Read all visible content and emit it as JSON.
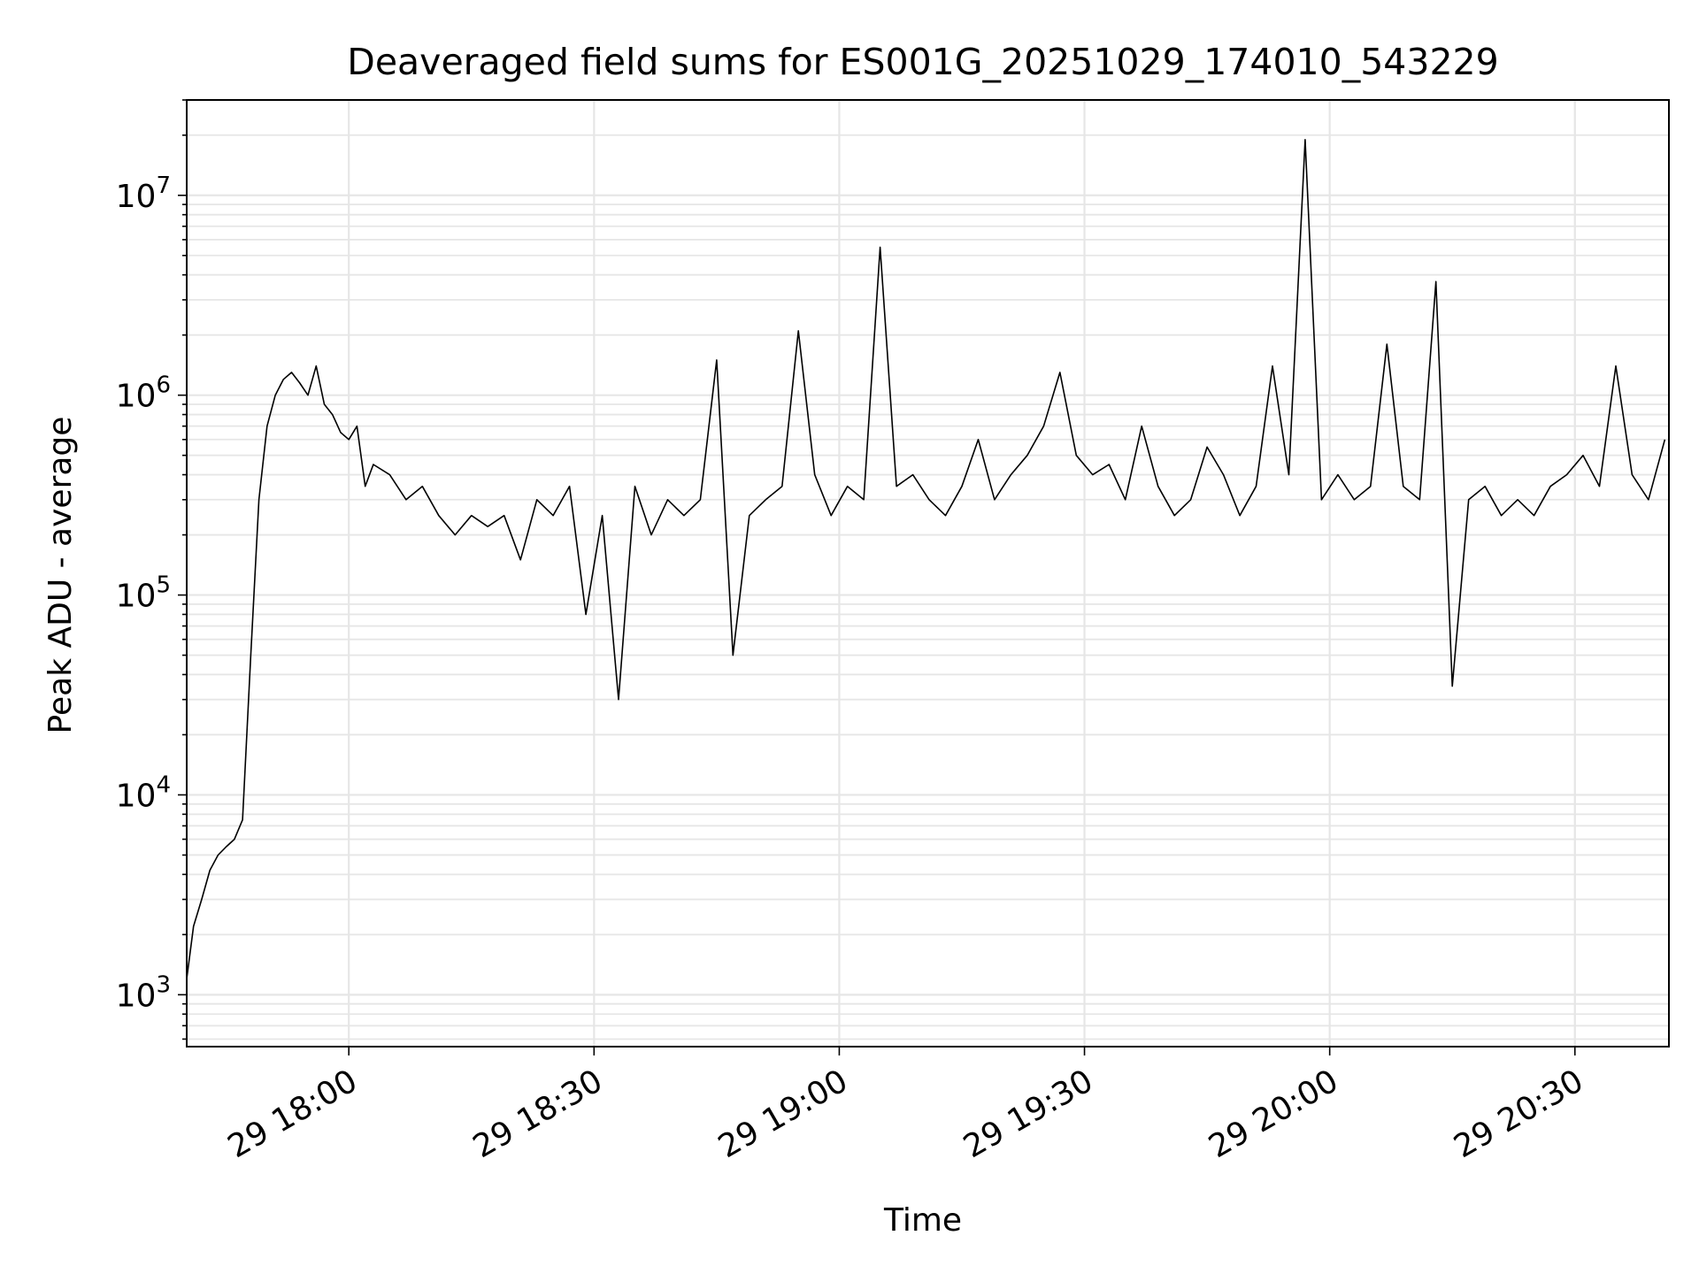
{
  "chart_data": {
    "type": "line",
    "title": "Deaveraged field sums for ES001G_20251029_174010_543229",
    "xlabel": "Time",
    "ylabel": "Peak ADU - average",
    "x_axis": {
      "kind": "time",
      "range": [
        "2025-10-29 17:40:10",
        "2025-10-29 20:41:30"
      ],
      "ticks": [
        "2025-10-29 18:00",
        "2025-10-29 18:30",
        "2025-10-29 19:00",
        "2025-10-29 19:30",
        "2025-10-29 20:00",
        "2025-10-29 20:30"
      ],
      "tick_labels": [
        "29 18:00",
        "29 18:30",
        "29 19:00",
        "29 19:30",
        "29 20:00",
        "29 20:30"
      ]
    },
    "y_axis": {
      "scale": "log",
      "range": [
        550,
        30000000
      ],
      "tick_labels": [
        {
          "value": 1000,
          "base": "10",
          "exp": "3"
        },
        {
          "value": 10000,
          "base": "10",
          "exp": "4"
        },
        {
          "value": 100000,
          "base": "10",
          "exp": "5"
        },
        {
          "value": 1000000,
          "base": "10",
          "exp": "6"
        },
        {
          "value": 10000000,
          "base": "10",
          "exp": "7"
        }
      ]
    },
    "grid": true,
    "line_color": "#000000",
    "grid_color": "#e6e6e6",
    "series": [
      {
        "x": [
          "2025-10-29 17:40:10",
          "2025-10-29 17:41:00",
          "2025-10-29 17:42:00",
          "2025-10-29 17:43:00",
          "2025-10-29 17:44:00",
          "2025-10-29 17:45:00",
          "2025-10-29 17:46:00",
          "2025-10-29 17:47:00",
          "2025-10-29 17:48:00",
          "2025-10-29 17:49:00",
          "2025-10-29 17:50:00",
          "2025-10-29 17:51:00",
          "2025-10-29 17:52:00",
          "2025-10-29 17:53:00",
          "2025-10-29 17:54:00",
          "2025-10-29 17:55:00",
          "2025-10-29 17:56:00",
          "2025-10-29 17:57:00",
          "2025-10-29 17:58:00",
          "2025-10-29 17:59:00",
          "2025-10-29 18:00:00",
          "2025-10-29 18:01:00",
          "2025-10-29 18:02:00",
          "2025-10-29 18:03:00",
          "2025-10-29 18:05:00",
          "2025-10-29 18:07:00",
          "2025-10-29 18:09:00",
          "2025-10-29 18:11:00",
          "2025-10-29 18:13:00",
          "2025-10-29 18:15:00",
          "2025-10-29 18:17:00",
          "2025-10-29 18:19:00",
          "2025-10-29 18:21:00",
          "2025-10-29 18:23:00",
          "2025-10-29 18:25:00",
          "2025-10-29 18:27:00",
          "2025-10-29 18:29:00",
          "2025-10-29 18:31:00",
          "2025-10-29 18:33:00",
          "2025-10-29 18:35:00",
          "2025-10-29 18:37:00",
          "2025-10-29 18:39:00",
          "2025-10-29 18:41:00",
          "2025-10-29 18:43:00",
          "2025-10-29 18:45:00",
          "2025-10-29 18:47:00",
          "2025-10-29 18:49:00",
          "2025-10-29 18:51:00",
          "2025-10-29 18:53:00",
          "2025-10-29 18:55:00",
          "2025-10-29 18:57:00",
          "2025-10-29 18:59:00",
          "2025-10-29 19:01:00",
          "2025-10-29 19:03:00",
          "2025-10-29 19:05:00",
          "2025-10-29 19:07:00",
          "2025-10-29 19:09:00",
          "2025-10-29 19:11:00",
          "2025-10-29 19:13:00",
          "2025-10-29 19:15:00",
          "2025-10-29 19:17:00",
          "2025-10-29 19:19:00",
          "2025-10-29 19:21:00",
          "2025-10-29 19:23:00",
          "2025-10-29 19:25:00",
          "2025-10-29 19:27:00",
          "2025-10-29 19:29:00",
          "2025-10-29 19:31:00",
          "2025-10-29 19:33:00",
          "2025-10-29 19:35:00",
          "2025-10-29 19:37:00",
          "2025-10-29 19:39:00",
          "2025-10-29 19:41:00",
          "2025-10-29 19:43:00",
          "2025-10-29 19:45:00",
          "2025-10-29 19:47:00",
          "2025-10-29 19:49:00",
          "2025-10-29 19:51:00",
          "2025-10-29 19:53:00",
          "2025-10-29 19:55:00",
          "2025-10-29 19:57:00",
          "2025-10-29 19:59:00",
          "2025-10-29 20:01:00",
          "2025-10-29 20:03:00",
          "2025-10-29 20:05:00",
          "2025-10-29 20:07:00",
          "2025-10-29 20:09:00",
          "2025-10-29 20:11:00",
          "2025-10-29 20:13:00",
          "2025-10-29 20:15:00",
          "2025-10-29 20:17:00",
          "2025-10-29 20:19:00",
          "2025-10-29 20:21:00",
          "2025-10-29 20:23:00",
          "2025-10-29 20:25:00",
          "2025-10-29 20:27:00",
          "2025-10-29 20:29:00",
          "2025-10-29 20:31:00",
          "2025-10-29 20:33:00",
          "2025-10-29 20:35:00",
          "2025-10-29 20:37:00",
          "2025-10-29 20:39:00",
          "2025-10-29 20:41:00"
        ],
        "y": [
          1200,
          2200,
          3000,
          4200,
          5000,
          5500,
          6000,
          7500,
          50000,
          300000,
          700000,
          1000000,
          1200000,
          1300000,
          1150000,
          1000000,
          1400000,
          900000,
          800000,
          650000,
          600000,
          700000,
          350000,
          450000,
          400000,
          300000,
          350000,
          250000,
          200000,
          250000,
          220000,
          250000,
          150000,
          300000,
          250000,
          350000,
          80000,
          250000,
          30000,
          350000,
          200000,
          300000,
          250000,
          300000,
          1500000,
          50000,
          250000,
          300000,
          350000,
          2100000,
          400000,
          250000,
          350000,
          300000,
          5500000,
          350000,
          400000,
          300000,
          250000,
          350000,
          600000,
          300000,
          400000,
          500000,
          700000,
          1300000,
          500000,
          400000,
          450000,
          300000,
          700000,
          350000,
          250000,
          300000,
          550000,
          400000,
          250000,
          350000,
          1400000,
          400000,
          19000000,
          300000,
          400000,
          300000,
          350000,
          1800000,
          350000,
          300000,
          3700000,
          35000,
          300000,
          350000,
          250000,
          300000,
          250000,
          350000,
          400000,
          500000,
          350000,
          1400000,
          400000,
          300000,
          600000
        ]
      }
    ]
  }
}
